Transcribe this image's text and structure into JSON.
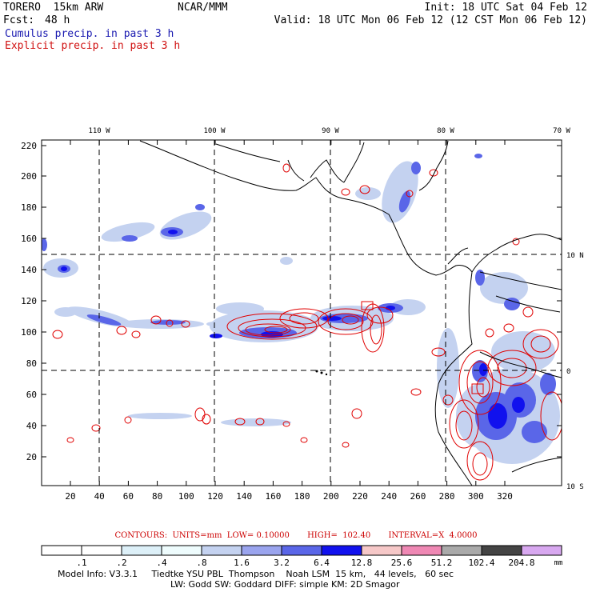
{
  "header": {
    "model": "TORERO  15km ARW",
    "center": "NCAR/MMM",
    "init": "Init: 18 UTC Sat 04 Feb 12",
    "fcst_label": "Fcst:",
    "fcst_hours": "48 h",
    "valid": "Valid: 18 UTC Mon 06 Feb 12 (12 CST Mon 06 Feb 12)",
    "legend_cumulus": "Cumulus precip. in past 3 h",
    "legend_explicit": "Explicit precip. in past 3 h"
  },
  "map": {
    "lon_labels": [
      "110 W",
      "100 W",
      "90 W",
      "80 W",
      "70 W"
    ],
    "lat_labels": [
      "10 N",
      "0",
      "10 S"
    ],
    "y_ticks": [
      "220",
      "200",
      "180",
      "160",
      "140",
      "120",
      "100",
      "80",
      "60",
      "40",
      "20"
    ],
    "x_ticks": [
      "20",
      "40",
      "60",
      "80",
      "100",
      "120",
      "140",
      "160",
      "180",
      "200",
      "220",
      "240",
      "260",
      "280",
      "300",
      "320"
    ]
  },
  "colorbar": {
    "contour_info": "CONTOURS:  UNITS=mm  LOW= 0.10000       HIGH=  102.40       INTERVAL=X  4.0000",
    "labels": [
      ".1",
      ".2",
      ".4",
      ".8",
      "1.6",
      "3.2",
      "6.4",
      "12.8",
      "25.6",
      "51.2",
      "102.4",
      "204.8"
    ],
    "units": "mm",
    "colors": [
      "#ffffff",
      "#ffffff",
      "#ddf0f8",
      "#eefcfd",
      "#c4d2f0",
      "#9aa4ee",
      "#5a66e8",
      "#1111ee",
      "#f6c8c8",
      "#ef88b4",
      "#aaaaaa",
      "#444444",
      "#d8a8f0"
    ]
  },
  "footer": {
    "line1": "Model Info: V3.3.1     Tiedtke YSU PBL  Thompson    Noah LSM  15 km,   44 levels,   60 sec",
    "line2": "LW: Godd SW: Goddard DIFF: simple KM: 2D Smagor"
  }
}
